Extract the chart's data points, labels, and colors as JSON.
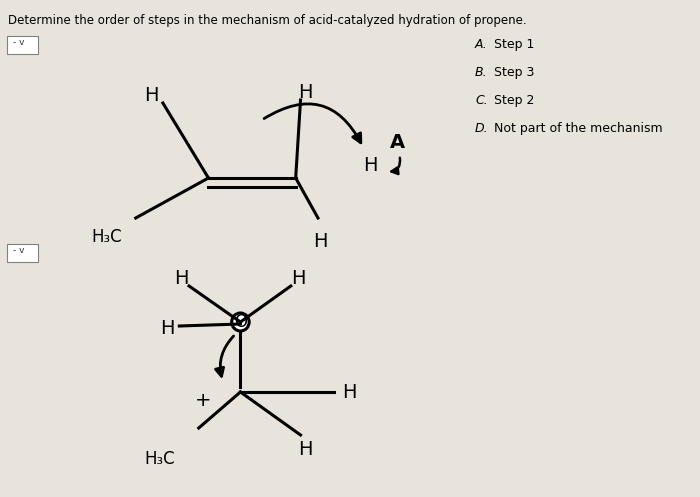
{
  "title": "Determine the order of steps in the mechanism of acid-catalyzed hydration of propene.",
  "background_color": "#e8e4dc",
  "options": [
    {
      "label": "A.",
      "text": "Step 1"
    },
    {
      "label": "B.",
      "text": "Step 3"
    },
    {
      "label": "C.",
      "text": "Step 2"
    },
    {
      "label": "D.",
      "text": "Not part of the mechanism"
    }
  ]
}
